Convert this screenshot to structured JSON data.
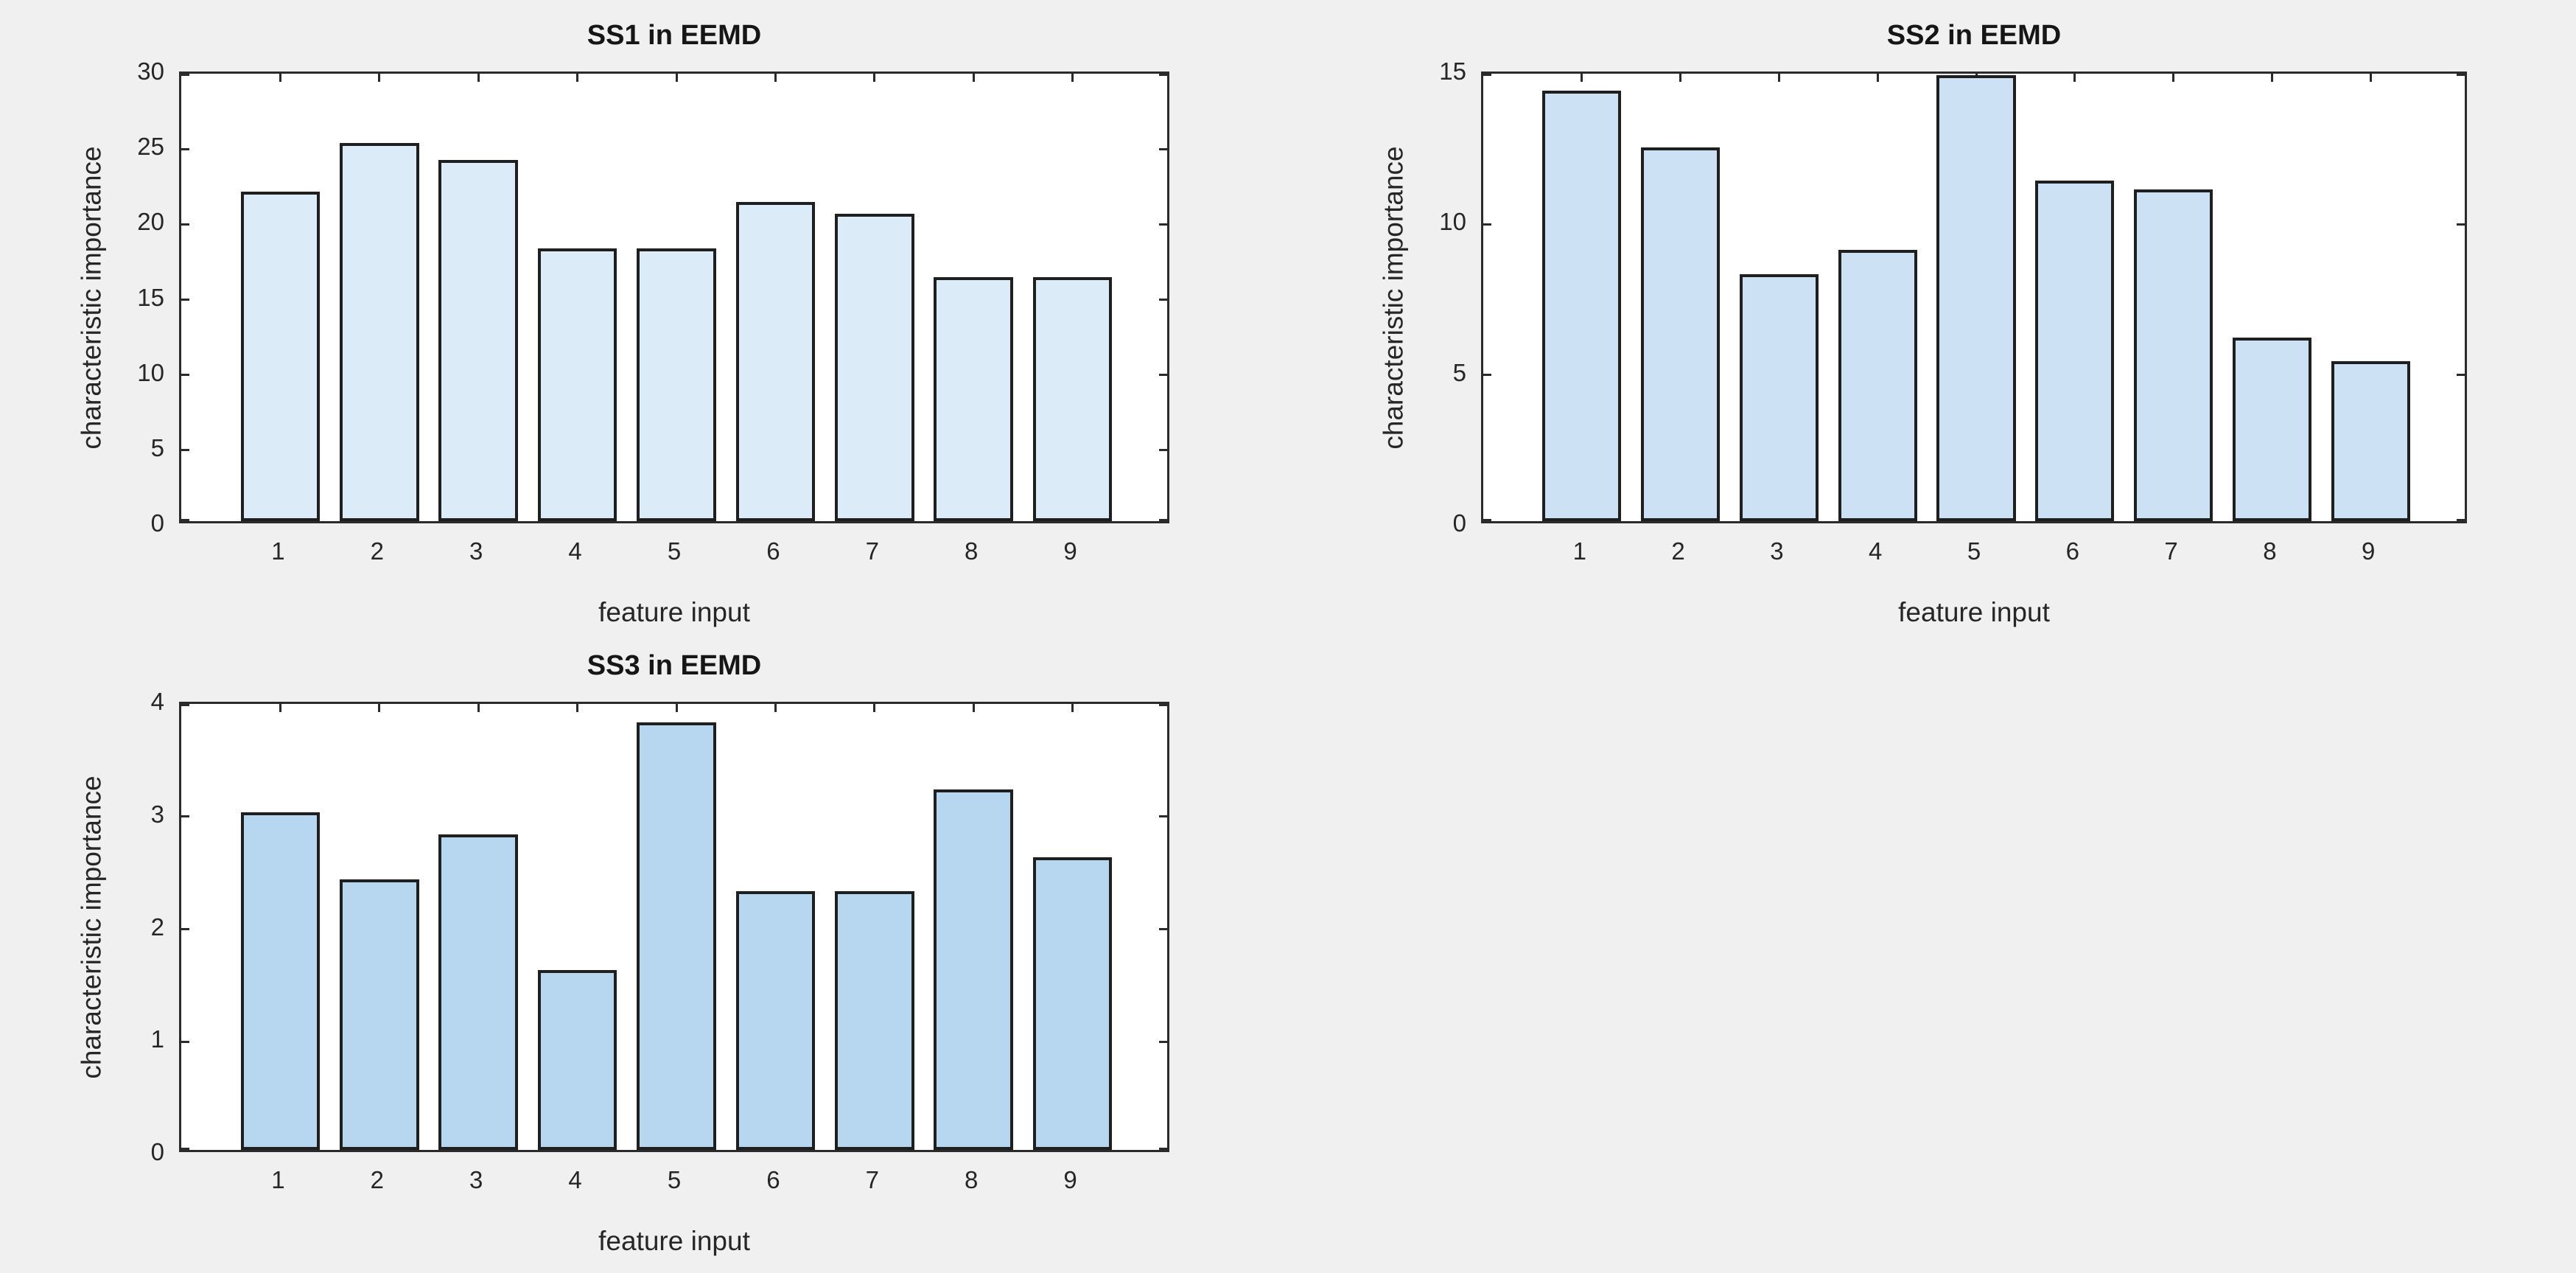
{
  "figure": {
    "background_color": "#f0f0f0",
    "plot_background_color": "#ffffff",
    "axis_color": "#2b2b2b",
    "tick_label_color": "#262626",
    "bar_edge_color": "#1f1f1f"
  },
  "chart_data": [
    {
      "type": "bar",
      "title": "SS1 in EEMD",
      "xlabel": "feature input",
      "ylabel": "characteristic importance",
      "categories": [
        "1",
        "2",
        "3",
        "4",
        "5",
        "6",
        "7",
        "8",
        "9"
      ],
      "values": [
        21.9,
        25.1,
        24.0,
        18.1,
        18.1,
        21.2,
        20.4,
        16.2,
        16.2
      ],
      "ylim": [
        0,
        30
      ],
      "yticks": [
        0,
        5,
        10,
        15,
        20,
        25,
        30
      ],
      "xlim": [
        0,
        10
      ],
      "bar_width_ratio": 0.8,
      "bar_fill": "#dcebf8",
      "grid": false,
      "legend": null
    },
    {
      "type": "bar",
      "title": "SS2 in EEMD",
      "xlabel": "feature input",
      "ylabel": "characteristic importance",
      "categories": [
        "1",
        "2",
        "3",
        "4",
        "5",
        "6",
        "7",
        "8",
        "9"
      ],
      "values": [
        14.3,
        12.4,
        8.2,
        9.0,
        14.8,
        11.3,
        11.0,
        6.1,
        5.3
      ],
      "ylim": [
        0,
        15
      ],
      "yticks": [
        0,
        5,
        10,
        15
      ],
      "xlim": [
        0,
        10
      ],
      "bar_width_ratio": 0.8,
      "bar_fill": "#cce1f4",
      "grid": false,
      "legend": null
    },
    {
      "type": "bar",
      "title": "SS3 in EEMD",
      "xlabel": "feature input",
      "ylabel": "characteristic importance",
      "categories": [
        "1",
        "2",
        "3",
        "4",
        "5",
        "6",
        "7",
        "8",
        "9"
      ],
      "values": [
        3.0,
        2.4,
        2.8,
        1.6,
        3.8,
        2.3,
        2.3,
        3.2,
        2.6
      ],
      "ylim": [
        0,
        4
      ],
      "yticks": [
        0,
        1,
        2,
        3,
        4
      ],
      "xlim": [
        0,
        10
      ],
      "bar_width_ratio": 0.8,
      "bar_fill": "#b7d7f0",
      "grid": false,
      "legend": null
    }
  ]
}
